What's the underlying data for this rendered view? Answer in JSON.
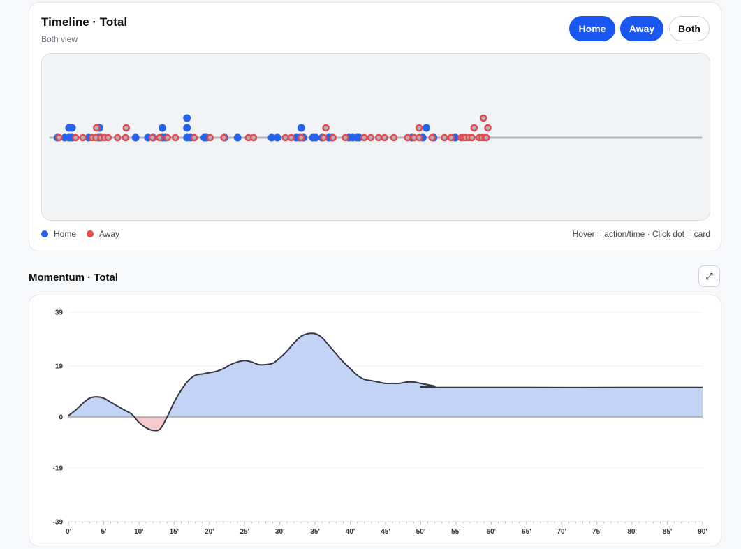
{
  "timeline": {
    "title": "Timeline · Total",
    "subtitle": "Both view",
    "buttons": {
      "home": "Home",
      "away": "Away",
      "both": "Both"
    },
    "legend": {
      "home": "Home",
      "away": "Away"
    },
    "hint": "Hover = action/time · Click dot = card",
    "colors": {
      "home": "#2563eb",
      "away": "#e5484d",
      "away_fill": "#b0b4c0",
      "baseline": "#b3b5ba"
    },
    "events": {
      "home": [
        [
          1,
          0
        ],
        [
          2,
          0
        ],
        [
          2.6,
          0
        ],
        [
          2.6,
          1
        ],
        [
          3,
          0
        ],
        [
          3,
          1
        ],
        [
          5.3,
          0
        ],
        [
          6.7,
          0
        ],
        [
          6.8,
          1
        ],
        [
          7,
          0
        ],
        [
          11.8,
          0
        ],
        [
          13.5,
          0
        ],
        [
          14.2,
          0
        ],
        [
          15.5,
          0
        ],
        [
          15.5,
          1
        ],
        [
          15.9,
          0
        ],
        [
          18.9,
          0
        ],
        [
          18.9,
          1
        ],
        [
          18.9,
          2
        ],
        [
          19.4,
          0
        ],
        [
          21.3,
          0
        ],
        [
          21.6,
          0
        ],
        [
          24.1,
          0
        ],
        [
          25.9,
          0
        ],
        [
          30.6,
          0
        ],
        [
          31.4,
          0
        ],
        [
          34,
          0
        ],
        [
          34.5,
          0
        ],
        [
          34.7,
          1
        ],
        [
          35,
          0
        ],
        [
          36.3,
          0
        ],
        [
          36.7,
          0
        ],
        [
          37.6,
          0
        ],
        [
          38.5,
          0
        ],
        [
          39,
          0
        ],
        [
          41.3,
          0
        ],
        [
          41.8,
          0
        ],
        [
          42.4,
          0
        ],
        [
          42.7,
          0
        ],
        [
          50,
          0
        ],
        [
          51.5,
          0
        ],
        [
          52,
          1
        ],
        [
          53,
          0
        ],
        [
          56,
          0
        ]
      ],
      "away": [
        [
          1.2,
          0
        ],
        [
          3.5,
          0
        ],
        [
          4.5,
          0
        ],
        [
          5.8,
          0
        ],
        [
          6.3,
          0
        ],
        [
          6.4,
          1
        ],
        [
          7,
          0
        ],
        [
          7.5,
          0
        ],
        [
          8,
          0
        ],
        [
          9.3,
          0
        ],
        [
          10.4,
          0
        ],
        [
          10.5,
          1
        ],
        [
          14.1,
          0
        ],
        [
          15.1,
          0
        ],
        [
          16.2,
          0
        ],
        [
          17.3,
          0
        ],
        [
          19.9,
          0
        ],
        [
          22.1,
          0
        ],
        [
          24,
          0
        ],
        [
          27.4,
          0
        ],
        [
          28.1,
          0
        ],
        [
          32.5,
          0
        ],
        [
          33.3,
          0
        ],
        [
          34.7,
          0
        ],
        [
          37.8,
          0
        ],
        [
          38.1,
          1
        ],
        [
          39.1,
          0
        ],
        [
          40.8,
          0
        ],
        [
          43.4,
          0
        ],
        [
          44.3,
          0
        ],
        [
          45.4,
          0
        ],
        [
          46.2,
          0
        ],
        [
          47.5,
          0
        ],
        [
          49.4,
          0
        ],
        [
          50.3,
          0
        ],
        [
          51,
          0
        ],
        [
          51,
          1
        ],
        [
          52.8,
          0
        ],
        [
          54.5,
          0
        ],
        [
          55.4,
          0
        ],
        [
          56.8,
          0
        ],
        [
          57.1,
          0
        ],
        [
          57.4,
          0
        ],
        [
          57.9,
          0
        ],
        [
          58.3,
          0
        ],
        [
          58.6,
          1
        ],
        [
          59.3,
          0
        ],
        [
          59.7,
          0
        ],
        [
          59.9,
          2
        ],
        [
          60.1,
          0
        ],
        [
          60.3,
          0
        ],
        [
          60.5,
          1
        ]
      ]
    }
  },
  "momentum": {
    "title": "Momentum · Total",
    "expand_icon": "expand-arrows-icon",
    "expand_glyph": "⤢",
    "chart_data": {
      "type": "area",
      "title": "Momentum · Total",
      "xlabel": "",
      "ylabel": "",
      "xlim": [
        0,
        90
      ],
      "ylim": [
        -39,
        39
      ],
      "x_ticks": [
        "0'",
        "5'",
        "10'",
        "15'",
        "20'",
        "25'",
        "30'",
        "35'",
        "40'",
        "45'",
        "50'",
        "55'",
        "60'",
        "65'",
        "70'",
        "75'",
        "80'",
        "85'",
        "90'"
      ],
      "y_ticks": [
        "39",
        "19",
        "0",
        "-19",
        "-39"
      ],
      "grid": true,
      "series": [
        {
          "positive_color": "#c3d3f6",
          "negative_color": "#f6c9cb",
          "line_color": "#333740",
          "x": [
            0,
            1,
            2,
            3,
            4,
            5,
            6,
            7,
            8,
            9,
            10,
            11,
            12,
            13,
            14,
            15,
            16,
            17,
            18,
            19,
            20,
            21,
            22,
            23,
            24,
            25,
            26,
            27,
            28,
            29,
            30,
            31,
            32,
            33,
            34,
            35,
            36,
            37,
            38,
            39,
            40,
            41,
            42,
            43,
            44,
            45,
            46,
            47,
            48,
            49,
            50,
            51,
            52,
            53,
            90
          ],
          "y": [
            0.5,
            2.5,
            5,
            7,
            7.5,
            7,
            5.5,
            4,
            2.5,
            1,
            -2,
            -4,
            -5,
            -4.5,
            0,
            5.5,
            10,
            13.5,
            15.5,
            16,
            16.5,
            17,
            18,
            19.5,
            20.5,
            21,
            20.5,
            19.5,
            19.5,
            20,
            22,
            24.5,
            27.5,
            30,
            31,
            31,
            29.5,
            26.5,
            23.5,
            20.5,
            18,
            15.5,
            14,
            13.5,
            13,
            12.5,
            12.5,
            12.5,
            13,
            13,
            12.5,
            12,
            11.5,
            11,
            11
          ]
        }
      ]
    }
  }
}
